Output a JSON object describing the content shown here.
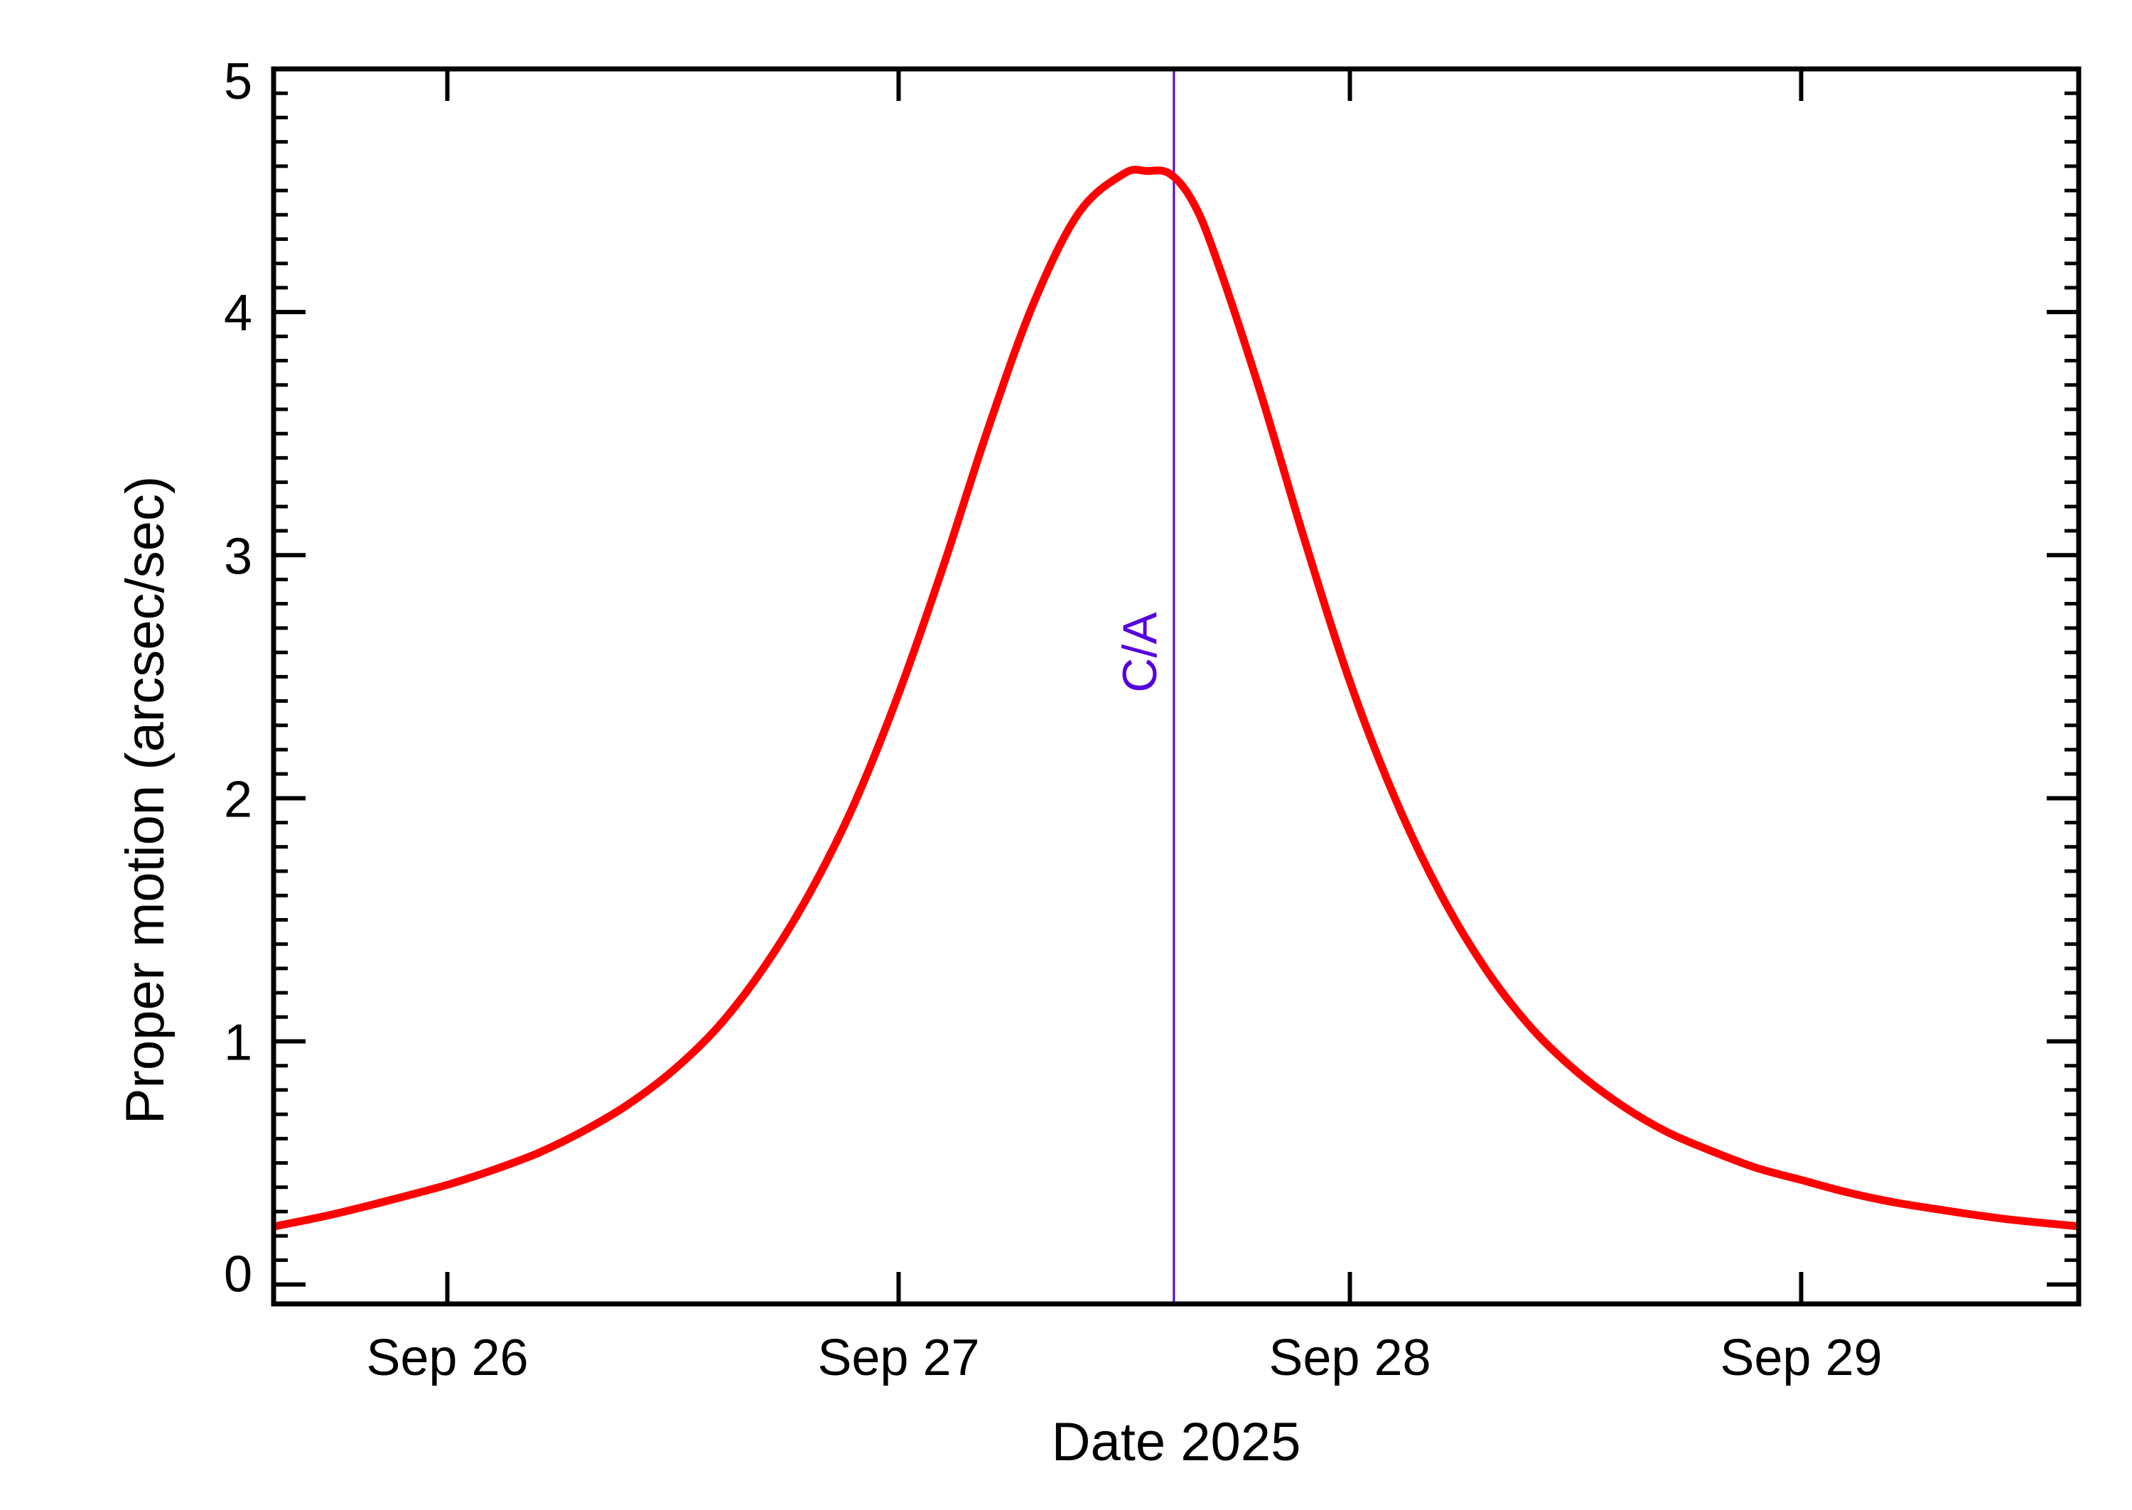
{
  "chart_data": {
    "type": "line",
    "title": "",
    "xlabel": "Date 2025",
    "ylabel": "Proper motion (arcsec/sec)",
    "x_ticks": [
      {
        "label": "Sep 26",
        "value": 26.0
      },
      {
        "label": "Sep 27",
        "value": 27.0
      },
      {
        "label": "Sep 28",
        "value": 28.0
      },
      {
        "label": "Sep 29",
        "value": 29.0
      }
    ],
    "y_ticks": [
      {
        "label": "0",
        "value": 0
      },
      {
        "label": "1",
        "value": 1
      },
      {
        "label": "2",
        "value": 2
      },
      {
        "label": "3",
        "value": 3
      },
      {
        "label": "4",
        "value": 4
      },
      {
        "label": "5",
        "value": 5
      }
    ],
    "xlim": [
      25.615,
      29.615
    ],
    "ylim": [
      -0.08,
      5.0
    ],
    "grid": false,
    "series": [
      {
        "color": "#ff0000",
        "x": [
          25.62,
          25.75,
          25.9,
          26.0,
          26.1,
          26.2,
          26.3,
          26.4,
          26.5,
          26.6,
          26.7,
          26.8,
          26.9,
          27.0,
          27.1,
          27.2,
          27.3,
          27.4,
          27.5,
          27.55,
          27.6,
          27.65,
          27.7,
          27.8,
          27.9,
          28.0,
          28.1,
          28.2,
          28.3,
          28.4,
          28.5,
          28.6,
          28.7,
          28.8,
          28.9,
          29.0,
          29.1,
          29.2,
          29.3,
          29.45,
          29.61
        ],
        "values": [
          0.24,
          0.29,
          0.36,
          0.41,
          0.47,
          0.54,
          0.63,
          0.74,
          0.88,
          1.06,
          1.3,
          1.6,
          1.97,
          2.43,
          2.96,
          3.53,
          4.04,
          4.41,
          4.57,
          4.58,
          4.57,
          4.46,
          4.24,
          3.68,
          3.06,
          2.48,
          2.0,
          1.61,
          1.3,
          1.06,
          0.88,
          0.74,
          0.63,
          0.55,
          0.48,
          0.43,
          0.38,
          0.34,
          0.31,
          0.27,
          0.24
        ]
      }
    ],
    "annotations": [
      {
        "label": "C/A",
        "x": 27.61,
        "color": "#5500dd"
      }
    ]
  }
}
